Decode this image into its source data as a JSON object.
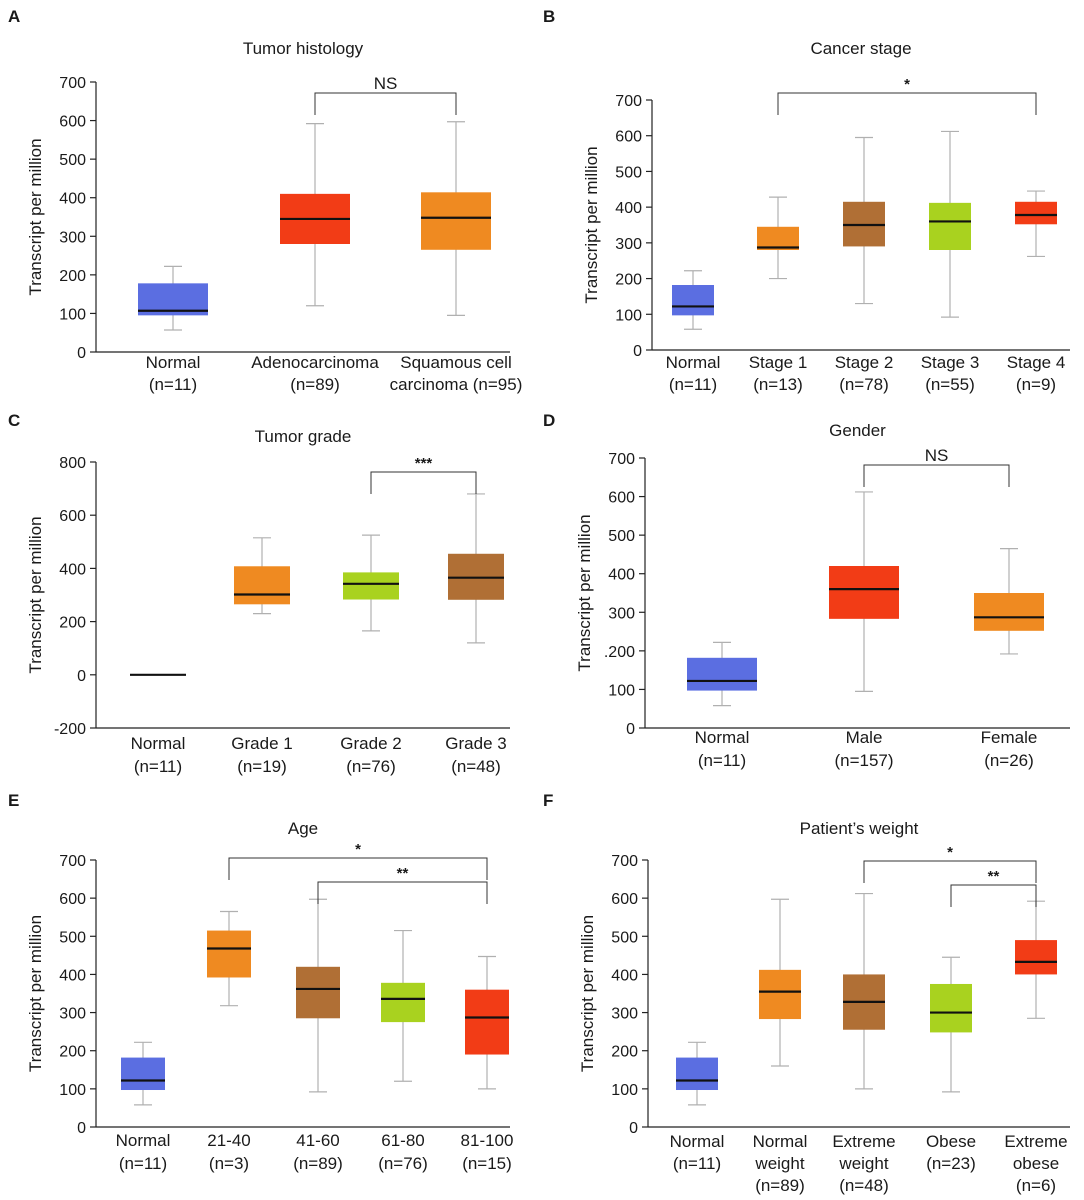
{
  "figure": {
    "colors": {
      "blue": "#5b6ee1",
      "red": "#f23c16",
      "orange": "#ef8a21",
      "brown": "#b06f35",
      "lime": "#a9d21f",
      "whisker": "#b0b0b0",
      "median": "#111111"
    }
  },
  "chart_data": [
    {
      "panel": "A",
      "type": "box",
      "title": "Tumor histology",
      "ylabel": "Transcript per million",
      "ylim": [
        0,
        700
      ],
      "yticks": [
        0,
        100,
        200,
        300,
        400,
        500,
        600,
        700
      ],
      "categories": [
        [
          "Normal",
          "(n=11)"
        ],
        [
          "Adenocarcinoma",
          "(n=89)"
        ],
        [
          "Squamous cell",
          "carcinoma (n=95)"
        ]
      ],
      "boxes": [
        {
          "color": "blue",
          "min": 57,
          "q1": 95,
          "median": 107,
          "q3": 178,
          "max": 222
        },
        {
          "color": "red",
          "min": 120,
          "q1": 280,
          "median": 345,
          "q3": 410,
          "max": 592
        },
        {
          "color": "orange",
          "min": 95,
          "q1": 265,
          "median": 348,
          "q3": 414,
          "max": 597
        }
      ],
      "brackets": [
        {
          "from": 1,
          "to": 2,
          "label": "NS"
        }
      ]
    },
    {
      "panel": "B",
      "type": "box",
      "title": "Cancer stage",
      "ylabel": "Transcript per million",
      "ylim": [
        0,
        700
      ],
      "yticks": [
        0,
        100,
        200,
        300,
        400,
        500,
        600,
        700
      ],
      "categories": [
        [
          "Normal",
          "(n=11)"
        ],
        [
          "Stage 1",
          "(n=13)"
        ],
        [
          "Stage 2",
          "(n=78)"
        ],
        [
          "Stage 3",
          "(n=55)"
        ],
        [
          "Stage 4",
          "(n=9)"
        ]
      ],
      "boxes": [
        {
          "color": "blue",
          "min": 58,
          "q1": 97,
          "median": 122,
          "q3": 182,
          "max": 222
        },
        {
          "color": "orange",
          "min": 200,
          "q1": 280,
          "median": 287,
          "q3": 345,
          "max": 428
        },
        {
          "color": "brown",
          "min": 130,
          "q1": 290,
          "median": 350,
          "q3": 415,
          "max": 595
        },
        {
          "color": "lime",
          "min": 92,
          "q1": 280,
          "median": 360,
          "q3": 412,
          "max": 612
        },
        {
          "color": "red",
          "min": 262,
          "q1": 352,
          "median": 378,
          "q3": 415,
          "max": 445
        }
      ],
      "brackets": [
        {
          "from": 1,
          "to": 4,
          "label": "*"
        }
      ]
    },
    {
      "panel": "C",
      "type": "box",
      "title": "Tumor grade",
      "ylabel": "Transcript per million",
      "ylim": [
        -200,
        800
      ],
      "yticks": [
        -200,
        0,
        200,
        400,
        600,
        800
      ],
      "categories": [
        [
          "Normal",
          "(n=11)"
        ],
        [
          "Grade 1",
          "(n=19)"
        ],
        [
          "Grade 2",
          "(n=76)"
        ],
        [
          "Grade 3",
          "(n=48)"
        ]
      ],
      "boxes": [
        {
          "color": "blue",
          "min": 0,
          "q1": 0,
          "median": 0,
          "q3": 0,
          "max": 0
        },
        {
          "color": "orange",
          "min": 230,
          "q1": 265,
          "median": 302,
          "q3": 408,
          "max": 515
        },
        {
          "color": "lime",
          "min": 165,
          "q1": 283,
          "median": 342,
          "q3": 385,
          "max": 525
        },
        {
          "color": "brown",
          "min": 120,
          "q1": 282,
          "median": 365,
          "q3": 455,
          "max": 680
        }
      ],
      "brackets": [
        {
          "from": 2,
          "to": 3,
          "label": "***"
        }
      ]
    },
    {
      "panel": "D",
      "type": "box",
      "title": "Gender",
      "ylabel": "Transcript per million",
      "ylim": [
        0,
        700
      ],
      "yticks": [
        0,
        100,
        200,
        300,
        400,
        500,
        600,
        700
      ],
      "ytick_labels": [
        "0",
        "100",
        ".200",
        "300",
        "400",
        "500",
        "600",
        "700"
      ],
      "categories": [
        [
          "Normal",
          "(n=11)"
        ],
        [
          "Male",
          "(n=157)"
        ],
        [
          "Female",
          "(n=26)"
        ]
      ],
      "boxes": [
        {
          "color": "blue",
          "min": 58,
          "q1": 97,
          "median": 122,
          "q3": 182,
          "max": 222
        },
        {
          "color": "red",
          "min": 95,
          "q1": 283,
          "median": 360,
          "q3": 420,
          "max": 612
        },
        {
          "color": "orange",
          "min": 192,
          "q1": 252,
          "median": 287,
          "q3": 350,
          "max": 465
        }
      ],
      "brackets": [
        {
          "from": 1,
          "to": 2,
          "label": "NS"
        }
      ]
    },
    {
      "panel": "E",
      "type": "box",
      "title": "Age",
      "ylabel": "Transcript per million",
      "ylim": [
        0,
        700
      ],
      "yticks": [
        0,
        100,
        200,
        300,
        400,
        500,
        600,
        700
      ],
      "categories": [
        [
          "Normal",
          "(n=11)"
        ],
        [
          "21-40",
          "(n=3)"
        ],
        [
          "41-60",
          "(n=89)"
        ],
        [
          "61-80",
          "(n=76)"
        ],
        [
          "81-100",
          "(n=15)"
        ]
      ],
      "boxes": [
        {
          "color": "blue",
          "min": 58,
          "q1": 97,
          "median": 122,
          "q3": 182,
          "max": 222
        },
        {
          "color": "orange",
          "min": 318,
          "q1": 392,
          "median": 468,
          "q3": 515,
          "max": 565
        },
        {
          "color": "brown",
          "min": 92,
          "q1": 285,
          "median": 362,
          "q3": 420,
          "max": 597
        },
        {
          "color": "lime",
          "min": 120,
          "q1": 275,
          "median": 336,
          "q3": 378,
          "max": 515
        },
        {
          "color": "red",
          "min": 100,
          "q1": 190,
          "median": 287,
          "q3": 360,
          "max": 447
        }
      ],
      "brackets": [
        {
          "from": 1,
          "to": 4,
          "label": "*"
        },
        {
          "from": 2,
          "to": 4,
          "label": "**"
        }
      ]
    },
    {
      "panel": "F",
      "type": "box",
      "title": "Patient’s weight",
      "ylabel": "Transcript per million",
      "ylim": [
        0,
        700
      ],
      "yticks": [
        0,
        100,
        200,
        300,
        400,
        500,
        600,
        700
      ],
      "categories": [
        [
          "Normal",
          "(n=11)"
        ],
        [
          "Normal",
          "weight",
          "(n=89)"
        ],
        [
          "Extreme",
          "weight",
          "(n=48)"
        ],
        [
          "Obese",
          "(n=23)"
        ],
        [
          "Extreme",
          "obese",
          "(n=6)"
        ]
      ],
      "boxes": [
        {
          "color": "blue",
          "min": 58,
          "q1": 97,
          "median": 122,
          "q3": 182,
          "max": 222
        },
        {
          "color": "orange",
          "min": 160,
          "q1": 283,
          "median": 355,
          "q3": 412,
          "max": 597
        },
        {
          "color": "brown",
          "min": 100,
          "q1": 255,
          "median": 328,
          "q3": 400,
          "max": 612
        },
        {
          "color": "lime",
          "min": 92,
          "q1": 248,
          "median": 300,
          "q3": 375,
          "max": 445
        },
        {
          "color": "red",
          "min": 285,
          "q1": 400,
          "median": 433,
          "q3": 490,
          "max": 592
        }
      ],
      "brackets": [
        {
          "from": 2,
          "to": 4,
          "label": "*"
        },
        {
          "from": 3,
          "to": 4,
          "label": "**"
        }
      ]
    }
  ]
}
